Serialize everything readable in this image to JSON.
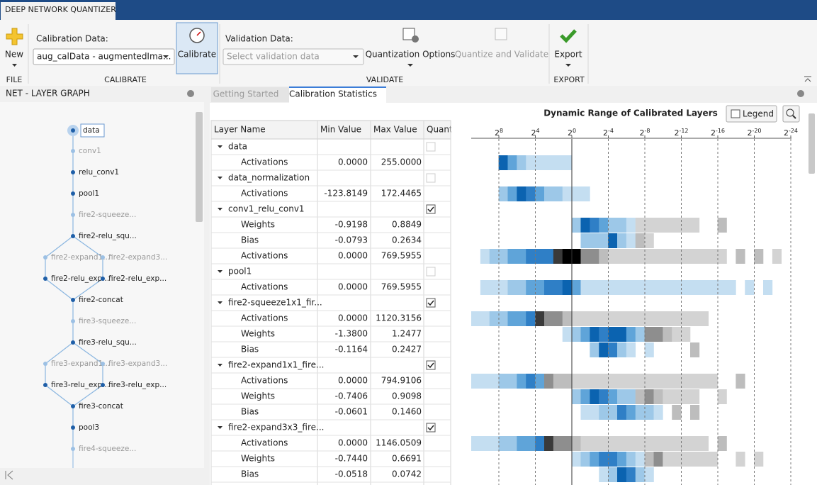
{
  "app_tab": "DEEP NETWORK QUANTIZER",
  "toolstrip": {
    "new": "New",
    "file": "FILE",
    "calibration_data_label": "Calibration Data:",
    "calibration_data_value": "aug_calData - augmentedIma...",
    "calibrate": "Calibrate",
    "calibrate_section": "CALIBRATE",
    "validation_data_label": "Validation Data:",
    "validation_data_placeholder": "Select validation data",
    "quantization_options": "Quantization Options",
    "quantize_and_validate": "Quantize and Validate",
    "validate_section": "VALIDATE",
    "export": "Export",
    "export_section": "EXPORT"
  },
  "left_panel": {
    "title": "NET - LAYER GRAPH",
    "nodes": [
      "data",
      "conv1",
      "relu_conv1",
      "pool1",
      "fire2-squeeze...",
      "fire2-relu_squ...",
      "fire2-expand1...",
      "fire2-expand3...",
      "fire2-relu_exp...",
      "fire2-relu_exp...",
      "fire2-concat",
      "fire3-squeeze...",
      "fire3-relu_squ...",
      "fire3-expand1...",
      "fire3-expand3...",
      "fire3-relu_exp...",
      "fire3-relu_exp...",
      "fire3-concat",
      "pool3",
      "fire4-squeeze..."
    ]
  },
  "doc_tabs": [
    "Getting Started",
    "Calibration Statistics"
  ],
  "table": {
    "columns": [
      "Layer Name",
      "Min Value",
      "Max Value",
      "Quant"
    ],
    "rows": [
      {
        "name": "data",
        "quantize": false
      },
      {
        "name": "Activations",
        "min": "0.0000",
        "max": "255.0000"
      },
      {
        "name": "data_normalization",
        "quantize": false
      },
      {
        "name": "Activations",
        "min": "-123.8149",
        "max": "172.4465"
      },
      {
        "name": "conv1_relu_conv1",
        "quantize": true
      },
      {
        "name": "Weights",
        "min": "-0.9198",
        "max": "0.8849"
      },
      {
        "name": "Bias",
        "min": "-0.0793",
        "max": "0.2634"
      },
      {
        "name": "Activations",
        "min": "0.0000",
        "max": "769.5955"
      },
      {
        "name": "pool1",
        "quantize": false
      },
      {
        "name": "Activations",
        "min": "0.0000",
        "max": "769.5955"
      },
      {
        "name": "fire2-squeeze1x1_fir...",
        "quantize": true
      },
      {
        "name": "Activations",
        "min": "0.0000",
        "max": "1120.3156"
      },
      {
        "name": "Weights",
        "min": "-1.3800",
        "max": "1.2477"
      },
      {
        "name": "Bias",
        "min": "-0.1164",
        "max": "0.2427"
      },
      {
        "name": "fire2-expand1x1_fire...",
        "quantize": true
      },
      {
        "name": "Activations",
        "min": "0.0000",
        "max": "794.9106"
      },
      {
        "name": "Weights",
        "min": "-0.7406",
        "max": "0.9098"
      },
      {
        "name": "Bias",
        "min": "-0.0601",
        "max": "0.1460"
      },
      {
        "name": "fire2-expand3x3_fire...",
        "quantize": true
      },
      {
        "name": "Activations",
        "min": "0.0000",
        "max": "1146.0509"
      },
      {
        "name": "Weights",
        "min": "-0.7440",
        "max": "0.6691"
      },
      {
        "name": "Bias",
        "min": "-0.0518",
        "max": "0.0742"
      }
    ]
  },
  "range_chart": {
    "title": "Dynamic Range of Calibrated Layers",
    "legend_button": "Legend",
    "tick_base": "2",
    "tick_exponents": [
      "8",
      "4",
      "0",
      "-4",
      "-8",
      "-12",
      "-16",
      "-20",
      "-24"
    ]
  }
}
